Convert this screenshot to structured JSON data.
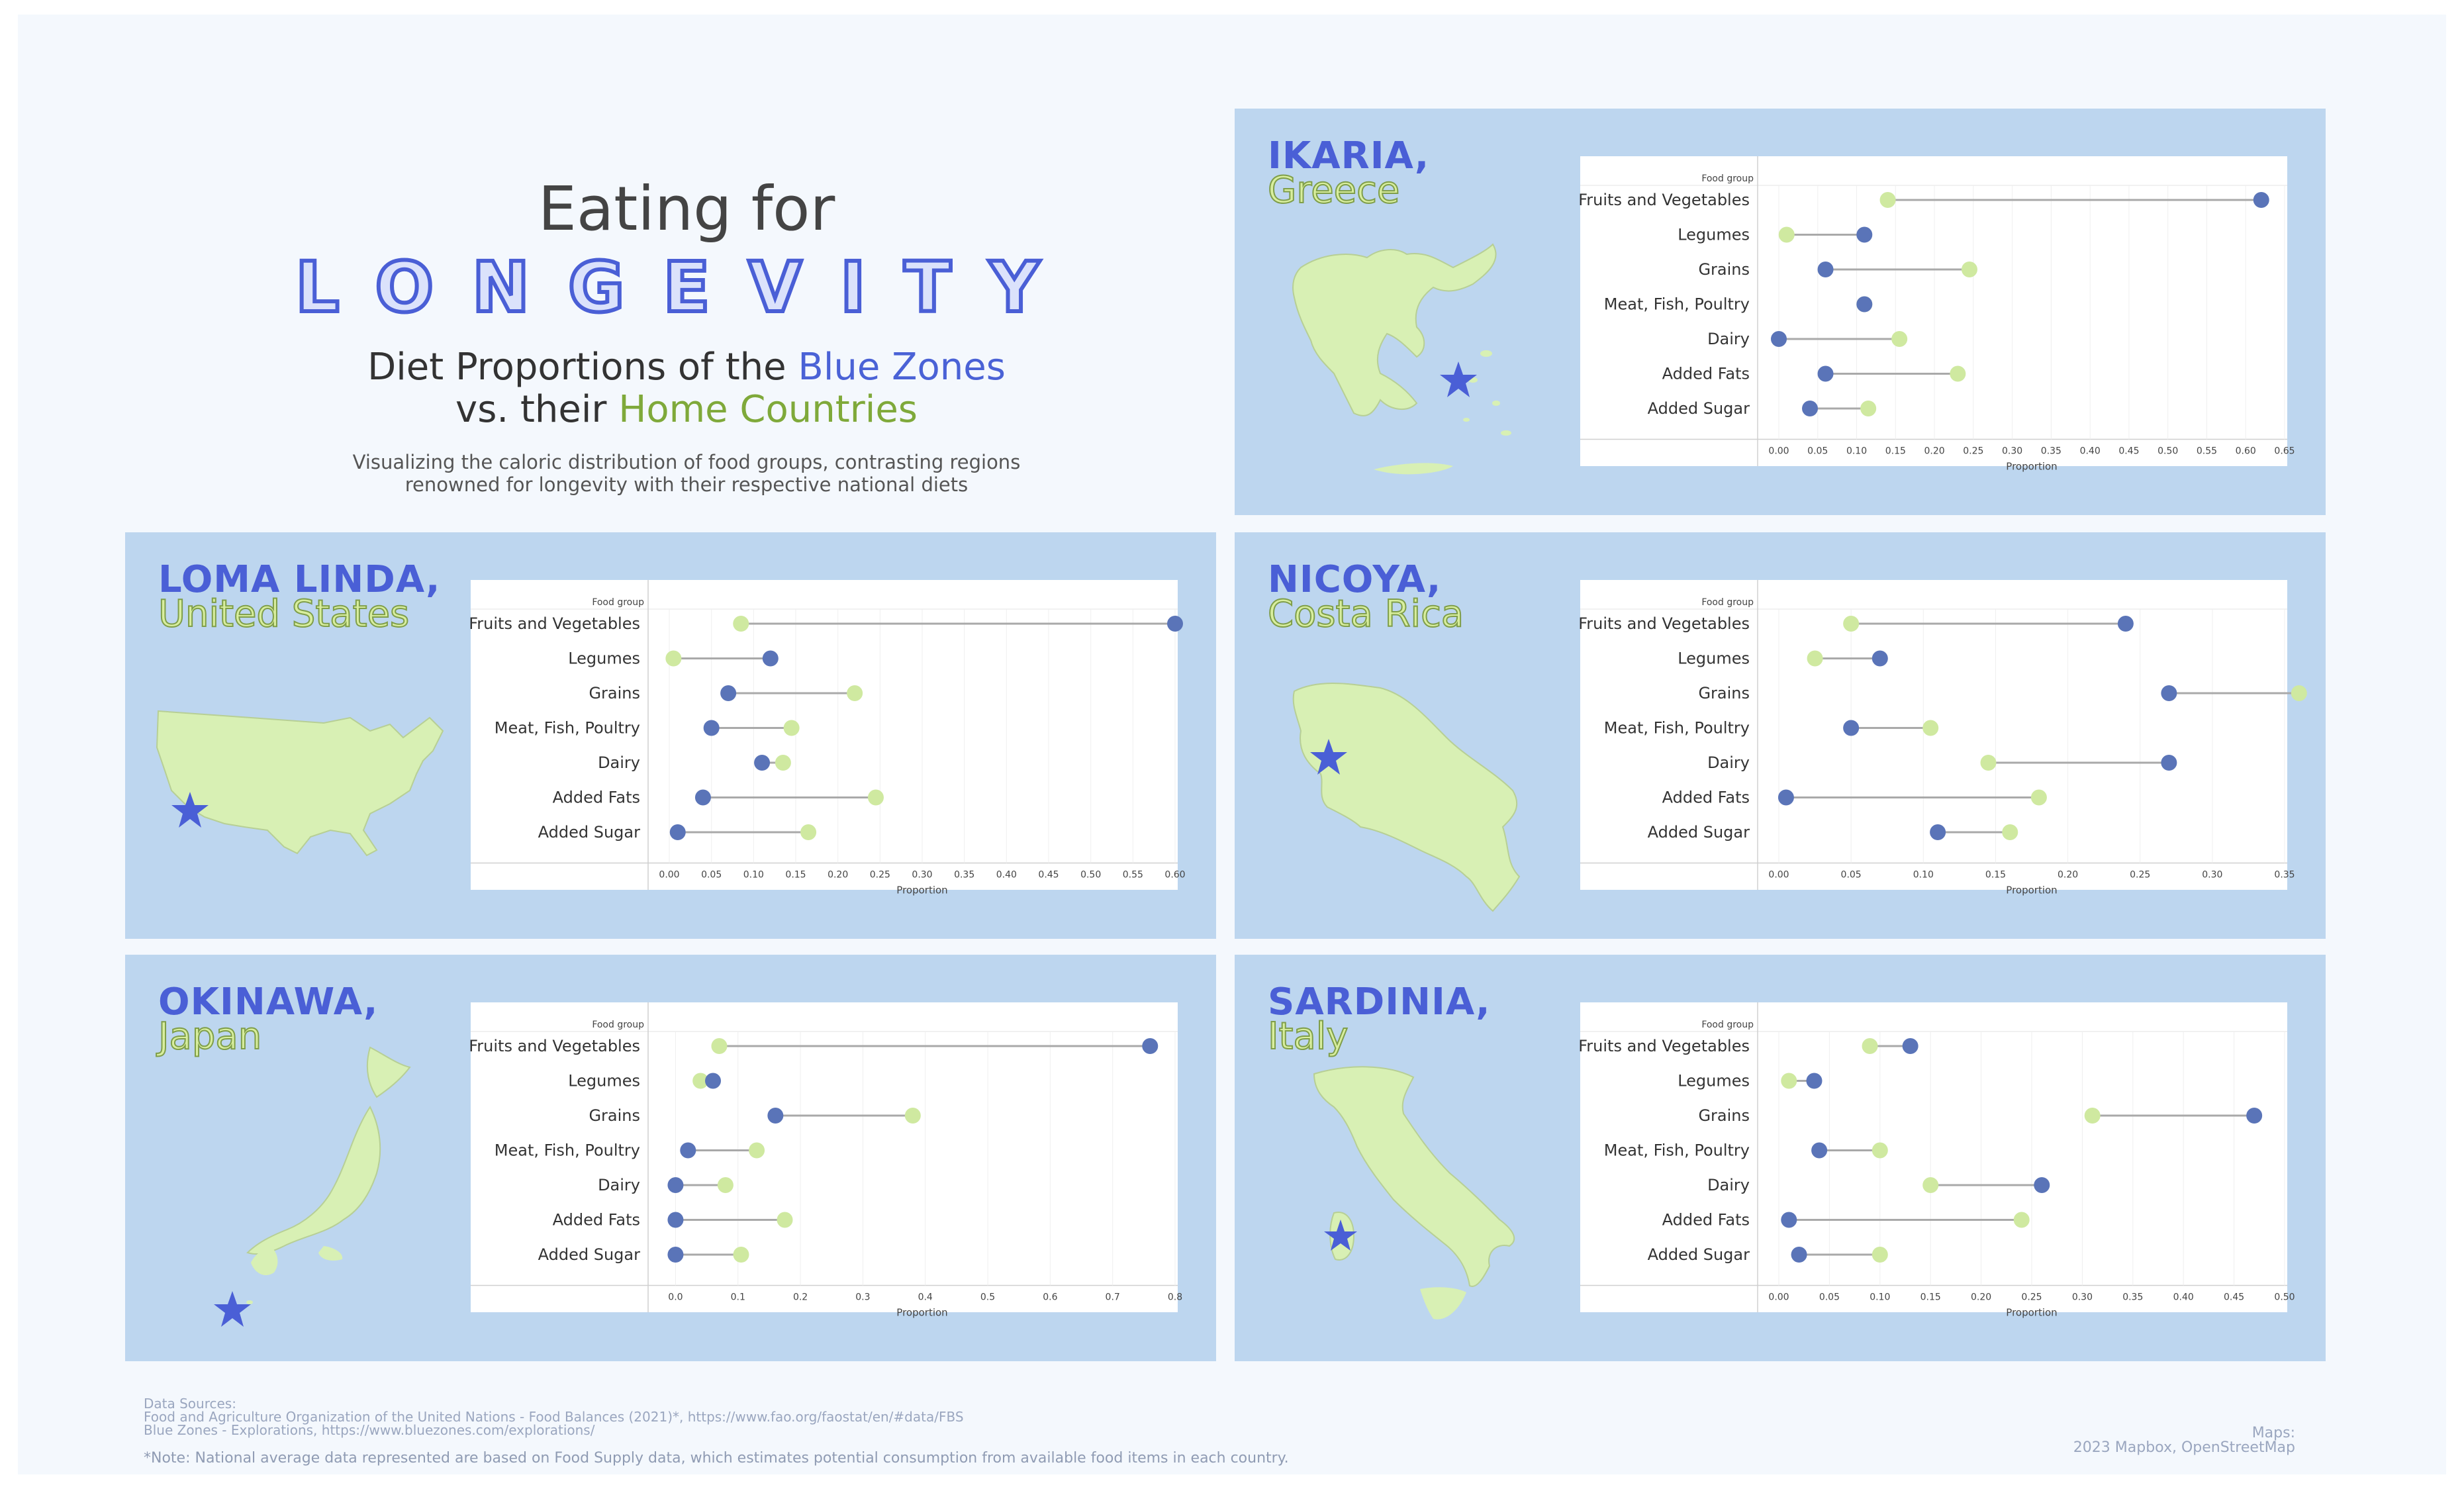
{
  "header": {
    "title_line1": "Eating for",
    "title_line2": "LONGEVITY",
    "subtitle_a": "Diet Proportions of the ",
    "subtitle_blue": "Blue Zones",
    "subtitle_b": "vs. their ",
    "subtitle_green": "Home Countries",
    "description_1": "Visualizing the caloric distribution of food groups, contrasting regions",
    "description_2": "renowned for longevity with their respective national diets"
  },
  "footer": {
    "sources_label": "Data Sources:",
    "source_1": "Food and Agriculture Organization of the United Nations - Food Balances (2021)*, https://www.fao.org/faostat/en/#data/FBS",
    "source_2": "Blue Zones - Explorations, https://www.bluezones.com/explorations/",
    "note": "*Note: National average data represented are based on Food Supply data, which estimates potential consumption from available food items in each country.",
    "maps_label": "Maps:",
    "maps_credit": "2023 Mapbox, OpenStreetMap"
  },
  "colors": {
    "blue_zone": "#5a74b8",
    "country": "#cfe9a0",
    "panel": "#bdd6ef",
    "map_fill": "#d8f0b4",
    "star": "#4a5fd6"
  },
  "regions": [
    {
      "name": "IKARIA,",
      "country": "Greece",
      "map_icon": "greece-map"
    },
    {
      "name": "LOMA LINDA,",
      "country": "United States",
      "map_icon": "usa-map"
    },
    {
      "name": "NICOYA,",
      "country": "Costa Rica",
      "map_icon": "costa-rica-map"
    },
    {
      "name": "OKINAWA,",
      "country": "Japan",
      "map_icon": "japan-map"
    },
    {
      "name": "SARDINIA,",
      "country": "Italy",
      "map_icon": "italy-map"
    }
  ],
  "chart_data": [
    {
      "type": "dumbbell",
      "region": "Ikaria",
      "y_header": "Food group",
      "xlabel": "Proportion",
      "categories": [
        "Fruits and Vegetables",
        "Legumes",
        "Grains",
        "Meat, Fish, Poultry",
        "Dairy",
        "Added Fats",
        "Added Sugar"
      ],
      "xlim": [
        0,
        0.65
      ],
      "ticks": [
        0,
        0.05,
        0.1,
        0.15,
        0.2,
        0.25,
        0.3,
        0.35,
        0.4,
        0.45,
        0.5,
        0.55,
        0.6,
        0.65
      ],
      "tick_labels": [
        "0.00",
        "0.05",
        "0.10",
        "0.15",
        "0.20",
        "0.25",
        "0.30",
        "0.35",
        "0.40",
        "0.45",
        "0.50",
        "0.55",
        "0.60",
        "0.65"
      ],
      "series": [
        {
          "role": "blue_zone",
          "values": [
            0.62,
            0.11,
            0.06,
            0.11,
            0.0,
            0.06,
            0.04
          ]
        },
        {
          "role": "country",
          "values": [
            0.14,
            0.01,
            0.245,
            0.11,
            0.155,
            0.23,
            0.115
          ]
        }
      ]
    },
    {
      "type": "dumbbell",
      "region": "Loma Linda",
      "y_header": "Food group",
      "xlabel": "Proportion",
      "categories": [
        "Fruits and Vegetables",
        "Legumes",
        "Grains",
        "Meat, Fish, Poultry",
        "Dairy",
        "Added Fats",
        "Added Sugar"
      ],
      "xlim": [
        0,
        0.6
      ],
      "ticks": [
        0,
        0.05,
        0.1,
        0.15,
        0.2,
        0.25,
        0.3,
        0.35,
        0.4,
        0.45,
        0.5,
        0.55,
        0.6
      ],
      "tick_labels": [
        "0.00",
        "0.05",
        "0.10",
        "0.15",
        "0.20",
        "0.25",
        "0.30",
        "0.35",
        "0.40",
        "0.45",
        "0.50",
        "0.55",
        "0.60"
      ],
      "series": [
        {
          "role": "blue_zone",
          "values": [
            0.6,
            0.12,
            0.07,
            0.05,
            0.11,
            0.04,
            0.01
          ]
        },
        {
          "role": "country",
          "values": [
            0.085,
            0.005,
            0.22,
            0.145,
            0.135,
            0.245,
            0.165
          ]
        }
      ]
    },
    {
      "type": "dumbbell",
      "region": "Nicoya",
      "y_header": "Food group",
      "xlabel": "Proportion",
      "categories": [
        "Fruits and Vegetables",
        "Legumes",
        "Grains",
        "Meat, Fish, Poultry",
        "Dairy",
        "Added Fats",
        "Added Sugar"
      ],
      "xlim": [
        0,
        0.35
      ],
      "ticks": [
        0,
        0.05,
        0.1,
        0.15,
        0.2,
        0.25,
        0.3,
        0.35
      ],
      "tick_labels": [
        "0.00",
        "0.05",
        "0.10",
        "0.15",
        "0.20",
        "0.25",
        "0.30",
        "0.35"
      ],
      "series": [
        {
          "role": "blue_zone",
          "values": [
            0.24,
            0.07,
            0.27,
            0.05,
            0.27,
            0.005,
            0.11
          ]
        },
        {
          "role": "country",
          "values": [
            0.05,
            0.025,
            0.36,
            0.105,
            0.145,
            0.18,
            0.16
          ]
        }
      ]
    },
    {
      "type": "dumbbell",
      "region": "Okinawa",
      "y_header": "Food group",
      "xlabel": "Proportion",
      "categories": [
        "Fruits and Vegetables",
        "Legumes",
        "Grains",
        "Meat, Fish, Poultry",
        "Dairy",
        "Added Fats",
        "Added Sugar"
      ],
      "xlim": [
        -0.01,
        0.8
      ],
      "ticks": [
        0,
        0.1,
        0.2,
        0.3,
        0.4,
        0.5,
        0.6,
        0.7,
        0.8
      ],
      "tick_labels": [
        "0.0",
        "0.1",
        "0.2",
        "0.3",
        "0.4",
        "0.5",
        "0.6",
        "0.7",
        "0.8"
      ],
      "series": [
        {
          "role": "blue_zone",
          "values": [
            0.76,
            0.06,
            0.16,
            0.02,
            0.0,
            0.0,
            0.0
          ]
        },
        {
          "role": "country",
          "values": [
            0.07,
            0.04,
            0.38,
            0.13,
            0.08,
            0.175,
            0.105
          ]
        }
      ]
    },
    {
      "type": "dumbbell",
      "region": "Sardinia",
      "y_header": "Food group",
      "xlabel": "Proportion",
      "categories": [
        "Fruits and Vegetables",
        "Legumes",
        "Grains",
        "Meat, Fish, Poultry",
        "Dairy",
        "Added Fats",
        "Added Sugar"
      ],
      "xlim": [
        0,
        0.5
      ],
      "ticks": [
        0,
        0.05,
        0.1,
        0.15,
        0.2,
        0.25,
        0.3,
        0.35,
        0.4,
        0.45,
        0.5
      ],
      "tick_labels": [
        "0.00",
        "0.05",
        "0.10",
        "0.15",
        "0.20",
        "0.25",
        "0.30",
        "0.35",
        "0.40",
        "0.45",
        "0.50"
      ],
      "series": [
        {
          "role": "blue_zone",
          "values": [
            0.13,
            0.035,
            0.47,
            0.04,
            0.26,
            0.01,
            0.02
          ]
        },
        {
          "role": "country",
          "values": [
            0.09,
            0.01,
            0.31,
            0.1,
            0.15,
            0.24,
            0.1
          ]
        }
      ]
    }
  ]
}
